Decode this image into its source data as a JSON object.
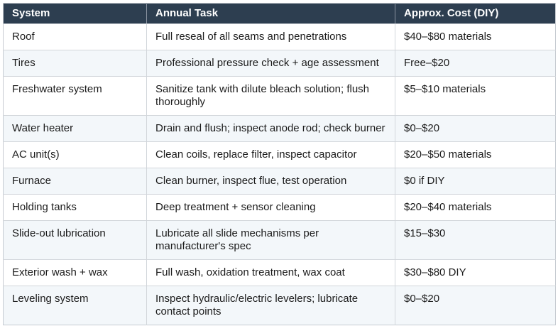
{
  "table": {
    "columns": [
      {
        "label": "System"
      },
      {
        "label": "Annual Task"
      },
      {
        "label": "Approx. Cost (DIY)"
      }
    ],
    "rows": [
      {
        "system": "Roof",
        "task": "Full reseal of all seams and penetrations",
        "cost": "$40–$80 materials"
      },
      {
        "system": "Tires",
        "task": "Professional pressure check + age assessment",
        "cost": "Free–$20"
      },
      {
        "system": "Freshwater system",
        "task": "Sanitize tank with dilute bleach solution; flush thoroughly",
        "cost": "$5–$10 materials"
      },
      {
        "system": "Water heater",
        "task": "Drain and flush; inspect anode rod; check burner",
        "cost": "$0–$20"
      },
      {
        "system": "AC unit(s)",
        "task": "Clean coils, replace filter, inspect capacitor",
        "cost": "$20–$50 materials"
      },
      {
        "system": "Furnace",
        "task": "Clean burner, inspect flue, test operation",
        "cost": "$0 if DIY"
      },
      {
        "system": "Holding tanks",
        "task": "Deep treatment + sensor cleaning",
        "cost": "$20–$40 materials"
      },
      {
        "system": "Slide-out lubrication",
        "task": "Lubricate all slide mechanisms per manufacturer's spec",
        "cost": "$15–$30"
      },
      {
        "system": "Exterior wash + wax",
        "task": "Full wash, oxidation treatment, wax coat",
        "cost": "$30–$80 DIY"
      },
      {
        "system": "Leveling system",
        "task": "Inspect hydraulic/electric levelers; lubricate contact points",
        "cost": "$0–$20"
      }
    ]
  },
  "colors": {
    "header_background": "#2d3e50",
    "header_text": "#ffffff",
    "zebra_row_background": "#f3f7fa",
    "border": "#d2d6db",
    "body_text": "#1b1b1b"
  }
}
